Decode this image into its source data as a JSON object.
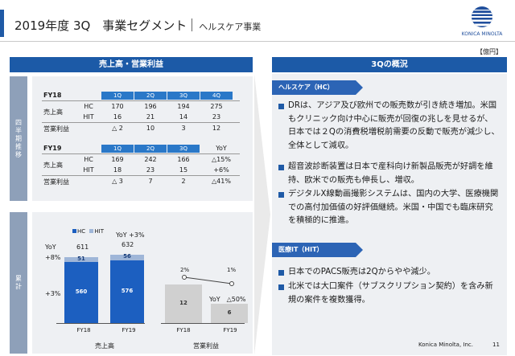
{
  "header": {
    "title": "2019年度 3Q　事業セグメント",
    "subtitle": "ヘルスケア事業",
    "logo_text": "KONICA MINOLTA"
  },
  "unit_label": "【億円】",
  "left_panel": {
    "title": "売上高・営業利益",
    "tab_quarterly": "四半期推移",
    "tab_cumulative": "累計",
    "fy18": {
      "label": "FY18",
      "quarters": [
        "1Q",
        "2Q",
        "3Q",
        "4Q"
      ],
      "row_sales": "売上高",
      "row_op": "営業利益",
      "hc_label": "HC",
      "hit_label": "HIT",
      "hc": [
        "170",
        "196",
        "194",
        "275"
      ],
      "hit": [
        "16",
        "21",
        "14",
        "23"
      ],
      "op": [
        "△ 2",
        "10",
        "3",
        "12"
      ]
    },
    "fy19": {
      "label": "FY19",
      "quarters": [
        "1Q",
        "2Q",
        "3Q"
      ],
      "yoy_label": "YoY",
      "row_sales": "売上高",
      "row_op": "営業利益",
      "hc_label": "HC",
      "hit_label": "HIT",
      "hc": [
        "169",
        "242",
        "166"
      ],
      "hit": [
        "18",
        "23",
        "15"
      ],
      "op": [
        "△ 3",
        "7",
        "2"
      ],
      "yoy_hc": "△15%",
      "yoy_hit": "+6%",
      "yoy_op": "△41%"
    }
  },
  "chart": {
    "legend_hc": "HC",
    "legend_hit": "HIT",
    "yoy_label": "YoY",
    "yoy_hit": "+8%",
    "yoy_hc": "+3%",
    "yoy_total": "YoY +3%",
    "op_yoy": "YoY　△50%",
    "group_sales": "売上高",
    "group_op": "営業利益",
    "colors": {
      "hc": "#1c5fc0",
      "hit": "#9fb6d8",
      "op": "#d0d0d0"
    }
  },
  "chart_data": {
    "type": "bar",
    "categories": [
      "FY18",
      "FY19"
    ],
    "series": [
      {
        "name": "HC",
        "values": [
          560,
          576
        ]
      },
      {
        "name": "HIT",
        "values": [
          51,
          56
        ]
      }
    ],
    "totals": [
      "611",
      "632"
    ],
    "operating_profit": {
      "values": [
        12,
        6
      ],
      "margins": [
        "2%",
        "1%"
      ]
    }
  },
  "right_panel": {
    "title": "3Qの概況",
    "sections": [
      {
        "heading": "ヘルスケア（HC）",
        "bullets": [
          "DRは、アジア及び欧州での販売数が引き続き増加。米国もクリニック向け中心に販売が回復の兆しを見せるが、日本では２Qの消費税増税前需要の反動で販売が減少し、全体として減収。",
          "超音波診断装置は日本で産科向け新製品販売が好調を維持、欧米での販売も伸長し、増収。",
          "デジタルX線動画撮影システムは、国内の大学、医療機関での高付加価値の好評価継続。米国・中国でも臨床研究を積極的に推進。"
        ]
      },
      {
        "heading": "医療IT（HIT）",
        "bullets": [
          "日本でのPACS販売は2Qからやや減少。",
          "北米では大口案件（サブスクリプション契約）を含み新規の案件を複数獲得。"
        ]
      }
    ]
  },
  "footer": {
    "company": "Konica Minolta, Inc.",
    "page": "11"
  }
}
